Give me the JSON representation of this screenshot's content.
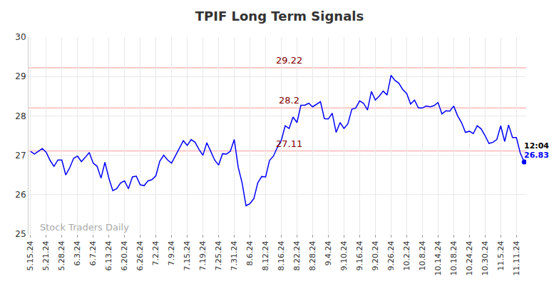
{
  "chart_data": {
    "type": "line",
    "title": "TPIF Long Term Signals",
    "color": "#0000ff",
    "grid": true,
    "ylim": [
      25,
      30
    ],
    "yticks": [
      25,
      26,
      27,
      28,
      29,
      30
    ],
    "levels": [
      29.22,
      28.2,
      27.11
    ],
    "watermark": "Stock Traders Daily",
    "time_label": "12:04",
    "categories": [
      "5.15.24",
      null,
      null,
      null,
      "5.21.24",
      null,
      null,
      null,
      "5.28.24",
      null,
      null,
      null,
      "6.3.24",
      null,
      null,
      null,
      "6.7.24",
      null,
      null,
      null,
      "6.13.24",
      null,
      null,
      null,
      "6.20.24",
      null,
      null,
      null,
      "6.26.24",
      null,
      null,
      null,
      "7.2.24",
      null,
      null,
      null,
      "7.9.24",
      null,
      null,
      null,
      "7.15.24",
      null,
      null,
      null,
      "7.19.24",
      null,
      null,
      null,
      "7.25.24",
      null,
      null,
      null,
      "7.31.24",
      null,
      null,
      null,
      "8.6.24",
      null,
      null,
      null,
      "8.12.24",
      null,
      null,
      null,
      "8.16.24",
      null,
      null,
      null,
      "8.22.24",
      null,
      null,
      null,
      "8.28.24",
      null,
      null,
      null,
      "9.4.24",
      null,
      null,
      null,
      "9.10.24",
      null,
      null,
      null,
      "9.16.24",
      null,
      null,
      null,
      "9.20.24",
      null,
      null,
      null,
      "9.26.24",
      null,
      null,
      null,
      "10.2.24",
      null,
      null,
      null,
      "10.8.24",
      null,
      null,
      null,
      "10.14.24",
      null,
      null,
      null,
      "10.18.24",
      null,
      null,
      null,
      "10.24.24",
      null,
      null,
      null,
      "10.30.24",
      null,
      null,
      null,
      "11.5.24",
      null,
      null,
      null,
      "11.11.24",
      null,
      null
    ],
    "values": [
      27.1,
      27.03,
      27.1,
      27.17,
      27.08,
      26.87,
      26.72,
      26.88,
      26.88,
      26.5,
      26.68,
      26.92,
      26.98,
      26.84,
      26.95,
      27.07,
      26.8,
      26.72,
      26.42,
      26.82,
      26.42,
      26.1,
      26.15,
      26.3,
      26.35,
      26.15,
      26.45,
      26.47,
      26.25,
      26.23,
      26.35,
      26.38,
      26.48,
      26.85,
      27.0,
      26.88,
      26.8,
      27.0,
      27.2,
      27.37,
      27.25,
      27.4,
      27.33,
      27.15,
      27.0,
      27.32,
      27.1,
      26.88,
      26.75,
      27.04,
      27.03,
      27.1,
      27.4,
      26.7,
      26.3,
      25.72,
      25.77,
      25.9,
      26.3,
      26.46,
      26.45,
      26.87,
      26.98,
      27.2,
      27.38,
      27.75,
      27.68,
      27.97,
      27.83,
      28.27,
      28.27,
      28.32,
      28.23,
      28.3,
      28.36,
      27.93,
      27.92,
      28.07,
      27.58,
      27.83,
      27.68,
      27.8,
      28.17,
      28.2,
      28.38,
      28.32,
      28.15,
      28.62,
      28.4,
      28.5,
      28.63,
      28.53,
      29.03,
      28.9,
      28.83,
      28.67,
      28.57,
      28.3,
      28.4,
      28.2,
      28.2,
      28.25,
      28.23,
      28.26,
      28.34,
      28.05,
      28.13,
      28.12,
      28.25,
      28.0,
      27.83,
      27.58,
      27.61,
      27.55,
      27.75,
      27.67,
      27.5,
      27.3,
      27.33,
      27.4,
      27.75,
      27.35,
      27.77,
      27.45,
      27.45,
      27.05,
      26.83
    ]
  }
}
